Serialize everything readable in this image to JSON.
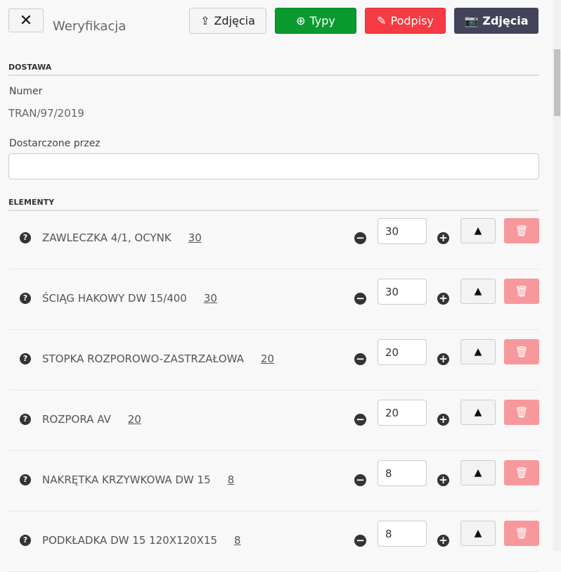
{
  "header": {
    "close_icon": "close-icon",
    "title": "Weryfikacja",
    "buttons": [
      {
        "label": "Zdjęcia",
        "icon": "upload-icon"
      },
      {
        "label": "Typy",
        "icon": "plus-circle-icon",
        "color": "#0a9a2e"
      },
      {
        "label": "Podpisy",
        "icon": "pencil-icon",
        "color": "#f63b44"
      },
      {
        "label": "Zdjęcia",
        "icon": "camera-icon",
        "color": "#43435a"
      }
    ]
  },
  "dostawa": {
    "heading": "DOSTAWA",
    "numer_label": "Numer",
    "numer_value": "TRAN/97/2019",
    "dostarczone_label": "Dostarczone przez",
    "dostarczone_value": ""
  },
  "elementy": {
    "heading": "ELEMENTY",
    "items": [
      {
        "name": "ZAWLECZKA 4/1, OCYNK",
        "expected": "30",
        "qty": "30"
      },
      {
        "name": "ŚCIĄG HAKOWY DW 15/400",
        "expected": "30",
        "qty": "30"
      },
      {
        "name": "STOPKA ROZPOROWO-ZASTRZAŁOWA",
        "expected": "20",
        "qty": "20"
      },
      {
        "name": "ROZPORA AV",
        "expected": "20",
        "qty": "20"
      },
      {
        "name": "NAKRĘTKA KRZYWKOWA DW 15",
        "expected": "8",
        "qty": "8"
      },
      {
        "name": "PODKŁADKA DW 15 120X120X15",
        "expected": "8",
        "qty": "8"
      }
    ]
  }
}
